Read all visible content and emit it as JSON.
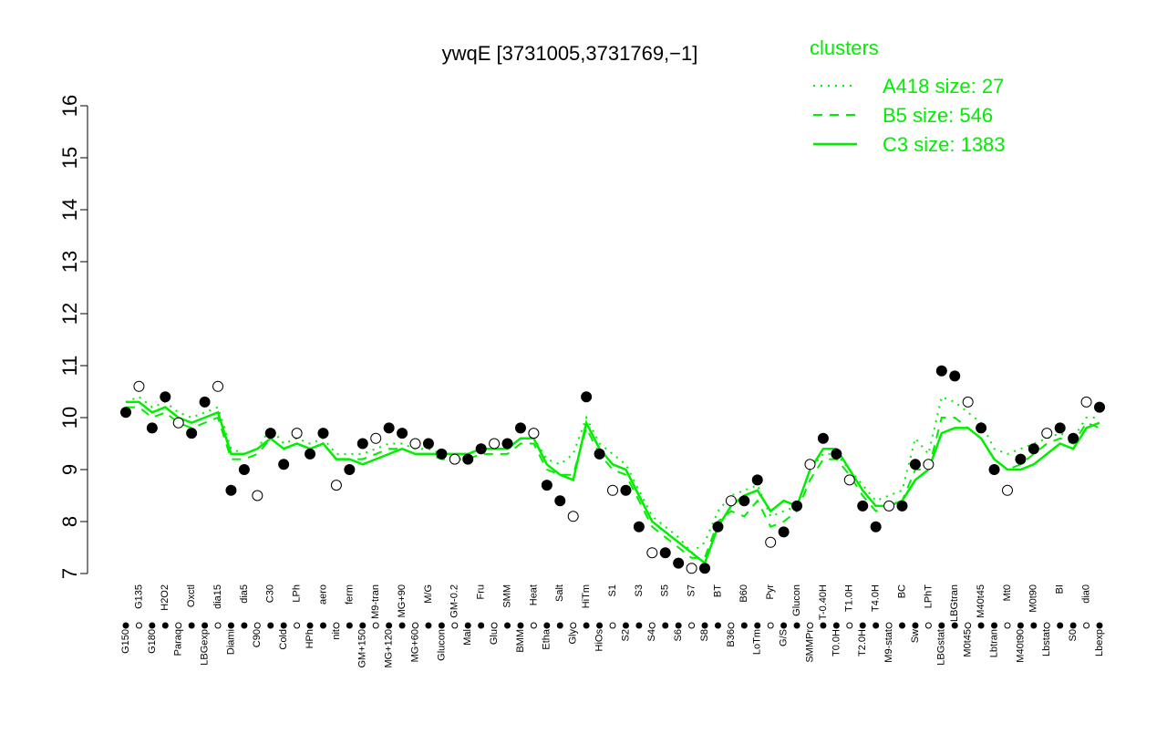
{
  "chart_data": {
    "type": "line",
    "title": "ywqE [3731005,3731769,−1]",
    "legend_title": "clusters",
    "legend_color": "#00ee00",
    "categories": [
      "G150",
      "G135",
      "G180",
      "H2O2",
      "Paraq",
      "Oxctl",
      "LBGexp",
      "dia15",
      "Diami",
      "dia5",
      "C90",
      "C30",
      "Cold",
      "LPh",
      "HPh",
      "aero",
      "nit",
      "ferm",
      "GM+150",
      "M9-tran",
      "MG+120",
      "MG+90",
      "MG+60",
      "M/G",
      "Glucon",
      "GM-0.2",
      "Mal",
      "Fru",
      "Glu",
      "SMM",
      "BMM",
      "Heat",
      "Etha",
      "Salt",
      "Gly",
      "HiTm",
      "HiOs",
      "S1",
      "S2",
      "S3",
      "S4",
      "S5",
      "S6",
      "S7",
      "S8",
      "BT",
      "B36",
      "B60",
      "LoTm",
      "Pyr",
      "G/S",
      "Glucon",
      "SMMPr",
      "T-0.40H",
      "T0.0H",
      "T1.0H",
      "T2.0H",
      "T4.0H",
      "M9-stat",
      "BC",
      "Sw",
      "LPhT",
      "LBGstat",
      "LBGtran",
      "M0t45",
      "M40t45",
      "Lbtran",
      "Mt0",
      "M40t90",
      "M0t90",
      "Lbstat",
      "BI",
      "S0",
      "dia0",
      "Lbexp"
    ],
    "points": {
      "values": [
        10.1,
        10.6,
        9.8,
        10.4,
        9.9,
        9.7,
        10.3,
        10.6,
        8.6,
        9.0,
        8.5,
        9.7,
        9.1,
        9.7,
        9.3,
        9.7,
        8.7,
        9.0,
        9.5,
        9.6,
        9.8,
        9.7,
        9.5,
        9.5,
        9.3,
        9.2,
        9.2,
        9.4,
        9.5,
        9.5,
        9.8,
        9.7,
        8.7,
        8.4,
        8.1,
        10.4,
        9.3,
        8.6,
        8.6,
        7.9,
        7.4,
        7.4,
        7.2,
        7.1,
        7.1,
        7.9,
        8.4,
        8.4,
        8.8,
        7.6,
        7.8,
        8.3,
        9.1,
        9.6,
        9.3,
        8.8,
        8.3,
        7.9,
        8.3,
        8.3,
        9.1,
        9.1,
        10.9,
        10.8,
        10.3,
        9.8,
        9.0,
        8.6,
        9.2,
        9.4,
        9.7,
        9.8,
        9.6,
        10.3,
        10.2
      ]
    },
    "series": [
      {
        "name": "A418 size: 27",
        "color": "#00ee00",
        "dash": "2,6",
        "values": [
          10.3,
          10.4,
          10.2,
          10.3,
          10.1,
          10.0,
          10.1,
          10.2,
          9.4,
          9.3,
          9.4,
          9.8,
          9.5,
          9.6,
          9.5,
          9.6,
          9.3,
          9.3,
          9.3,
          9.4,
          9.5,
          9.5,
          9.4,
          9.4,
          9.3,
          9.3,
          9.3,
          9.4,
          9.4,
          9.4,
          9.6,
          9.6,
          9.2,
          9.1,
          9.3,
          10.0,
          9.5,
          9.3,
          9.1,
          8.6,
          8.1,
          7.9,
          7.7,
          7.4,
          7.6,
          8.2,
          8.5,
          8.6,
          8.7,
          8.1,
          8.2,
          8.3,
          9.0,
          9.3,
          9.3,
          9.0,
          8.7,
          8.4,
          8.5,
          8.6,
          9.6,
          9.3,
          10.4,
          10.3,
          10.1,
          9.9,
          9.4,
          9.3,
          9.4,
          9.5,
          9.6,
          9.7,
          9.6,
          10.0,
          10.0
        ]
      },
      {
        "name": "B5 size: 546",
        "color": "#00ee00",
        "dash": "10,8",
        "values": [
          10.2,
          10.2,
          10.0,
          10.1,
          9.9,
          9.8,
          9.9,
          10.0,
          9.2,
          9.2,
          9.3,
          9.6,
          9.4,
          9.5,
          9.4,
          9.5,
          9.2,
          9.2,
          9.2,
          9.3,
          9.4,
          9.4,
          9.3,
          9.3,
          9.2,
          9.2,
          9.2,
          9.3,
          9.3,
          9.3,
          9.5,
          9.5,
          9.0,
          8.9,
          8.9,
          9.8,
          9.3,
          9.0,
          8.9,
          8.4,
          7.9,
          7.7,
          7.5,
          7.3,
          7.3,
          8.0,
          8.2,
          8.1,
          8.4,
          7.9,
          8.0,
          8.2,
          8.8,
          9.2,
          9.2,
          8.9,
          8.5,
          8.2,
          8.3,
          8.4,
          9.0,
          9.0,
          10.0,
          10.0,
          9.8,
          9.6,
          9.2,
          9.0,
          9.1,
          9.3,
          9.5,
          9.6,
          9.5,
          9.9,
          9.8
        ]
      },
      {
        "name": "C3 size: 1383",
        "color": "#00ee00",
        "dash": "",
        "values": [
          10.3,
          10.3,
          10.1,
          10.2,
          10.0,
          9.9,
          10.0,
          10.1,
          9.3,
          9.3,
          9.4,
          9.6,
          9.4,
          9.5,
          9.4,
          9.5,
          9.2,
          9.2,
          9.1,
          9.2,
          9.3,
          9.4,
          9.3,
          9.3,
          9.3,
          9.3,
          9.3,
          9.4,
          9.4,
          9.4,
          9.6,
          9.6,
          9.1,
          8.9,
          8.8,
          9.9,
          9.4,
          9.1,
          9.0,
          8.5,
          8.0,
          7.8,
          7.6,
          7.4,
          7.2,
          7.9,
          8.3,
          8.5,
          8.6,
          8.2,
          8.4,
          8.3,
          9.0,
          9.4,
          9.4,
          9.0,
          8.6,
          8.3,
          8.3,
          8.4,
          8.8,
          9.0,
          9.7,
          9.8,
          9.8,
          9.6,
          9.2,
          9.0,
          9.0,
          9.1,
          9.3,
          9.5,
          9.4,
          9.8,
          9.9
        ]
      }
    ],
    "ylim": [
      7,
      16
    ],
    "yticks": [
      7,
      8,
      9,
      10,
      11,
      12,
      13,
      14,
      15,
      16
    ]
  }
}
